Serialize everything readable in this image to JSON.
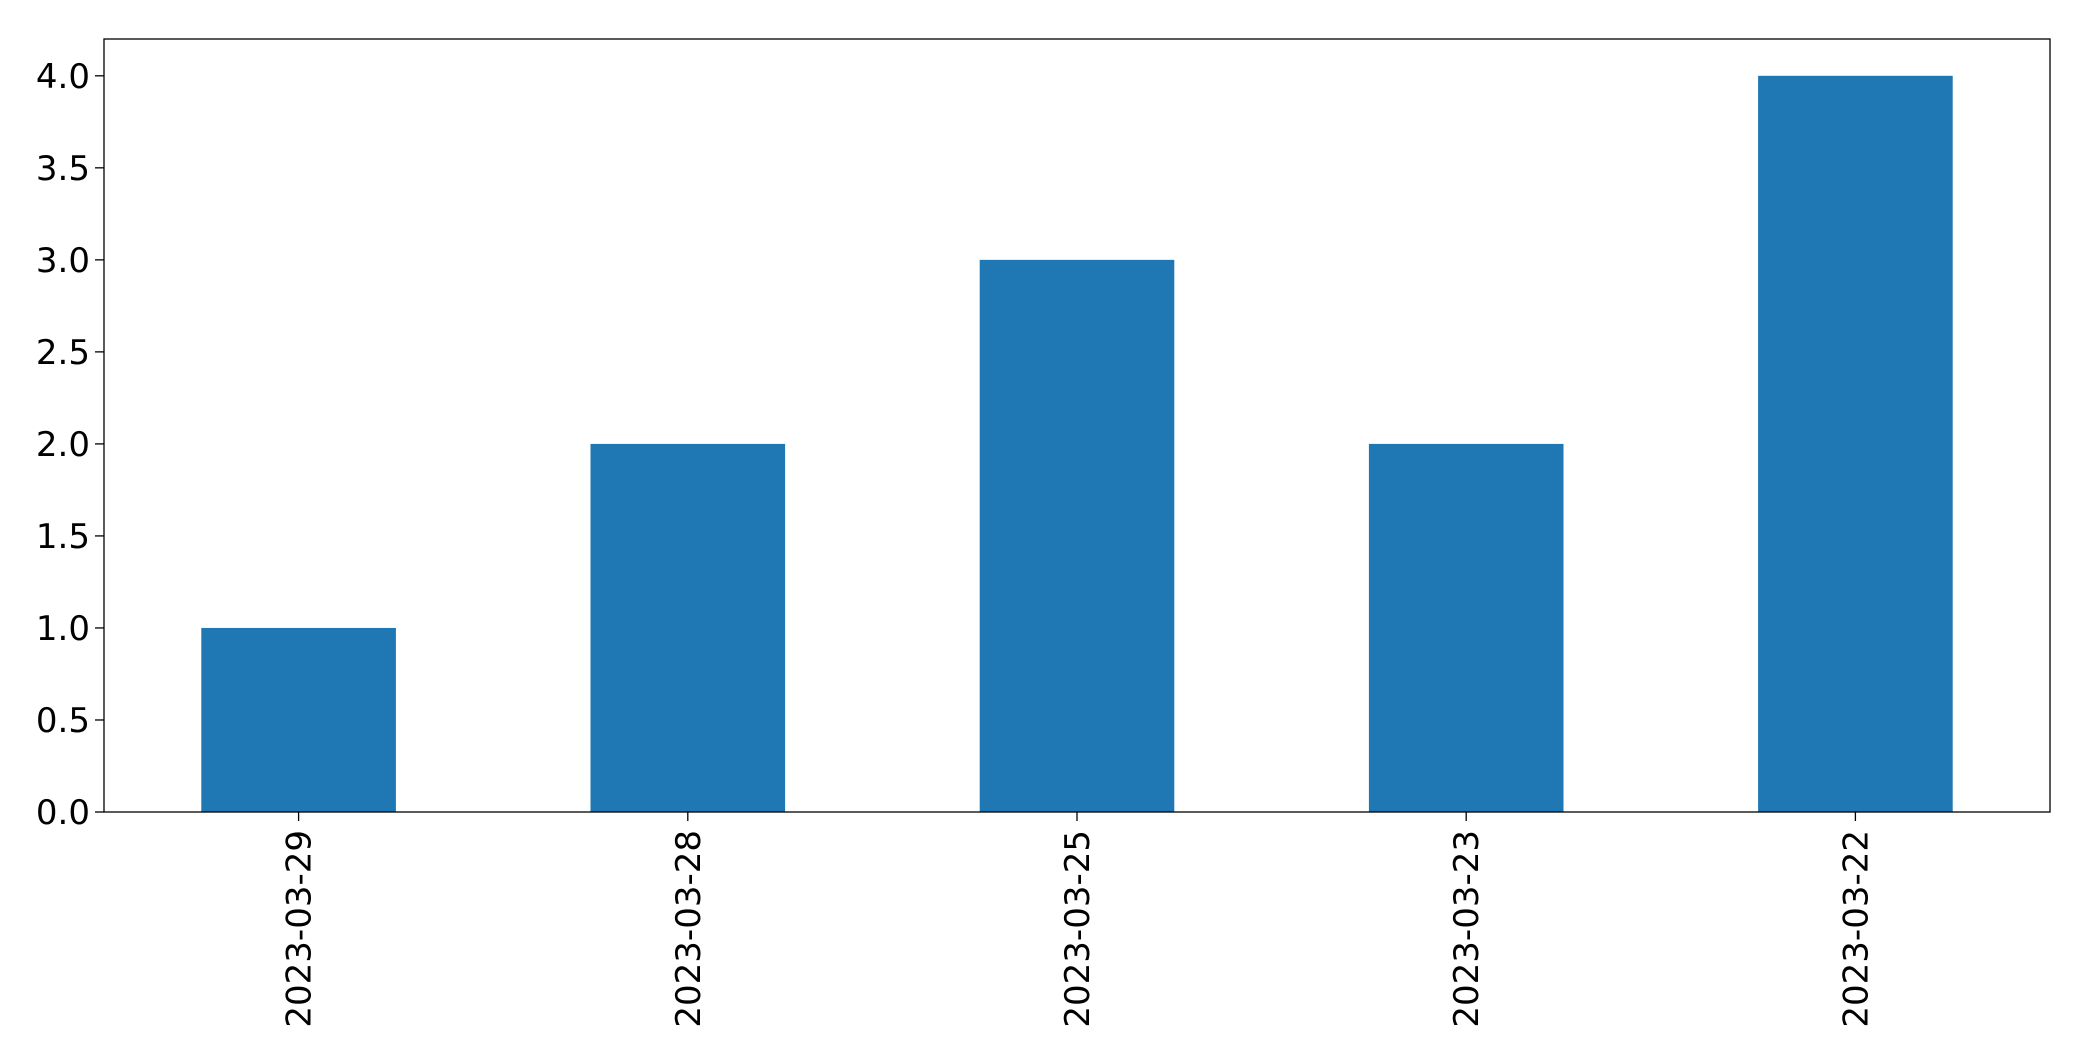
{
  "chart_data": {
    "type": "bar",
    "title": "",
    "xlabel": "",
    "ylabel": "",
    "categories": [
      "2023-03-29",
      "2023-03-28",
      "2023-03-25",
      "2023-03-23",
      "2023-03-22"
    ],
    "values": [
      1,
      2,
      3,
      2,
      4
    ],
    "ylim": [
      0,
      4.2
    ],
    "yticks": [
      "0.0",
      "0.5",
      "1.0",
      "1.5",
      "2.0",
      "2.5",
      "3.0",
      "3.5",
      "4.0"
    ],
    "x_tick_rotation": "vertical",
    "grid": false,
    "legend": "none",
    "bar_color": "#1f77b4"
  }
}
